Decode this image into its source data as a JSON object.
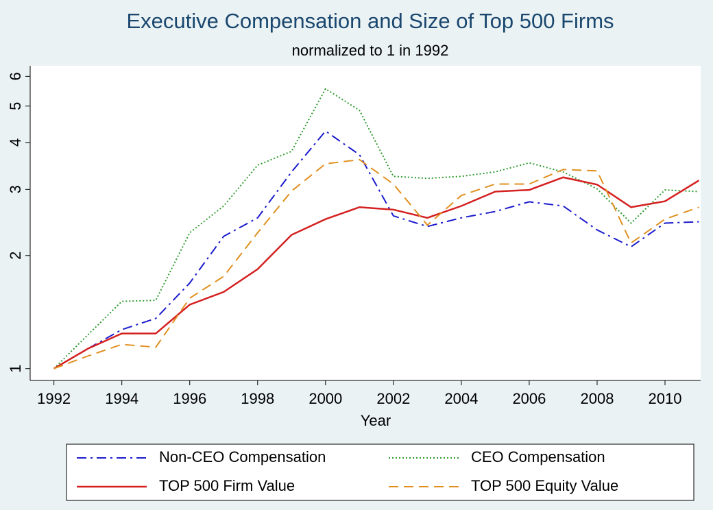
{
  "chart_data": {
    "type": "line",
    "title": "Executive Compensation and Size of Top 500 Firms",
    "subtitle": "normalized to 1 in 1992",
    "x_label": "Year",
    "x": [
      1992,
      1993,
      1994,
      1995,
      1996,
      1997,
      1998,
      1999,
      2000,
      2001,
      2002,
      2003,
      2004,
      2005,
      2006,
      2007,
      2008,
      2009,
      2010,
      2011
    ],
    "xlim": [
      1991.3,
      2011.05
    ],
    "xticks": [
      1992,
      1994,
      1996,
      1998,
      2000,
      2002,
      2004,
      2006,
      2008,
      2010
    ],
    "ylim": [
      0.93,
      6.4
    ],
    "yticks": [
      1,
      2,
      3,
      4,
      5,
      6
    ],
    "y_scale": "log",
    "series": [
      {
        "name": "Non-CEO Compensation",
        "color": "#1a1acc",
        "style": "dashdot",
        "values": [
          1,
          1.13,
          1.27,
          1.36,
          1.69,
          2.25,
          2.52,
          3.34,
          4.29,
          3.71,
          2.55,
          2.39,
          2.52,
          2.62,
          2.78,
          2.71,
          2.34,
          2.11,
          2.44,
          2.46
        ]
      },
      {
        "name": "CEO Compensation",
        "color": "#2e9a2e",
        "style": "dotted",
        "values": [
          1,
          1.23,
          1.51,
          1.52,
          2.3,
          2.71,
          3.48,
          3.79,
          5.56,
          4.87,
          3.25,
          3.21,
          3.25,
          3.34,
          3.53,
          3.34,
          3.01,
          2.44,
          2.99,
          2.96
        ]
      },
      {
        "name": "TOP 500 Firm Value",
        "color": "#d42020",
        "style": "solid",
        "values": [
          1,
          1.13,
          1.24,
          1.24,
          1.48,
          1.6,
          1.84,
          2.27,
          2.5,
          2.69,
          2.65,
          2.52,
          2.71,
          2.96,
          2.99,
          3.23,
          3.09,
          2.69,
          2.79,
          3.17
        ]
      },
      {
        "name": "TOP 500 Equity Value",
        "color": "#e09020",
        "style": "dashed",
        "values": [
          1,
          1.08,
          1.16,
          1.14,
          1.54,
          1.76,
          2.3,
          2.97,
          3.51,
          3.6,
          3.1,
          2.41,
          2.89,
          3.1,
          3.1,
          3.39,
          3.36,
          2.16,
          2.5,
          2.69
        ]
      }
    ]
  }
}
